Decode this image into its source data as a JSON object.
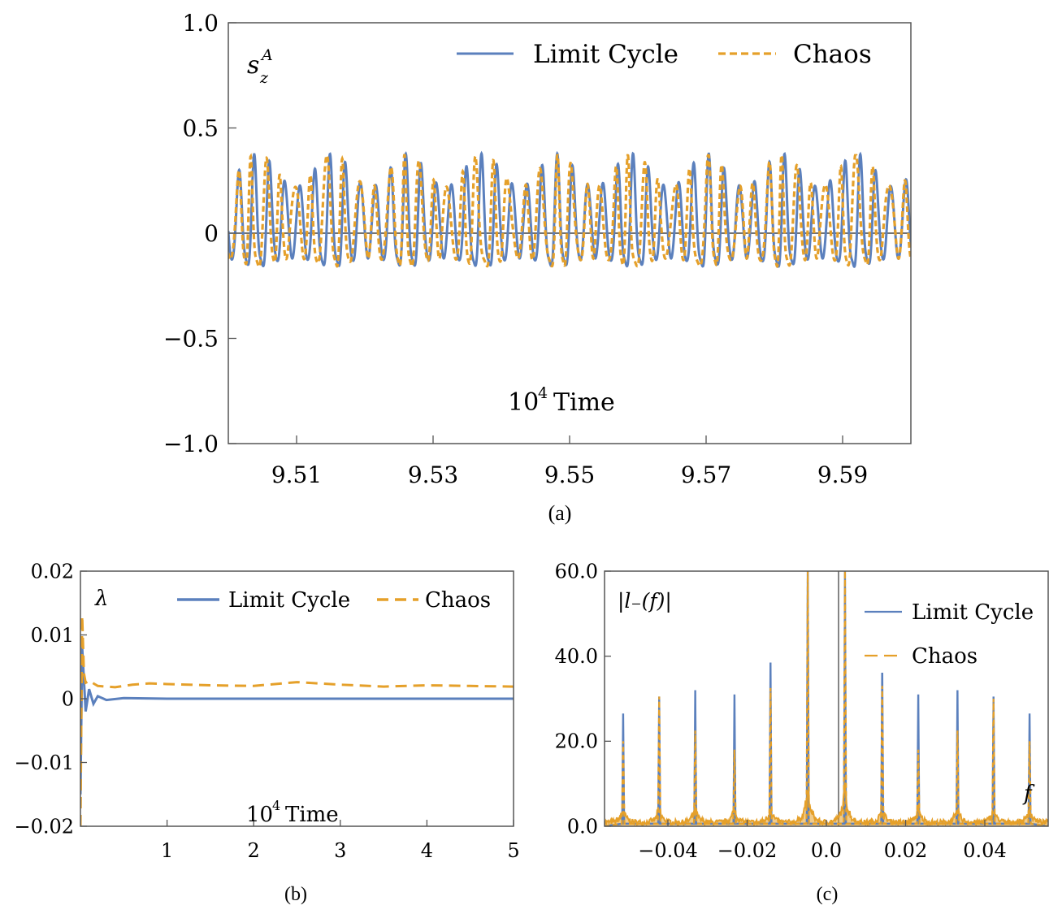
{
  "colors": {
    "limit_cycle": "#5b80bd",
    "chaos": "#e5a02a",
    "axis": "#555555",
    "zero_line": "#444444"
  },
  "chart_data": [
    {
      "id": "a",
      "type": "line",
      "panel_label": "(a)",
      "corner_label": "s_z^A",
      "corner_label_base": "s",
      "corner_label_sub": "z",
      "corner_label_sup": "A",
      "inner_xlabel_base": "10",
      "inner_xlabel_exp": "4",
      "inner_xlabel_rest": "Time",
      "xlim": [
        9.5,
        9.6
      ],
      "ylim": [
        -1.0,
        1.0
      ],
      "xticks": [
        9.51,
        9.53,
        9.55,
        9.57,
        9.59
      ],
      "xtick_labels": [
        "9.51",
        "9.53",
        "9.55",
        "9.57",
        "9.59"
      ],
      "yticks": [
        -1.0,
        -0.5,
        0,
        0.5,
        1.0
      ],
      "ytick_labels": [
        "−1.0",
        "−0.5",
        "0",
        "0.5",
        "1.0"
      ],
      "legend_position": "top-right",
      "grid": false,
      "series": [
        {
          "name": "Limit Cycle",
          "style": "solid",
          "color": "#5b80bd",
          "description": "quasi-periodic oscillation between about -0.28 and 0.38, fast period ~0.0022, envelope period ~0.011",
          "max": 0.38,
          "min": -0.28
        },
        {
          "name": "Chaos",
          "style": "dashed",
          "color": "#e5a02a",
          "description": "similar oscillation with slowly drifting phase, range about -0.30 to 0.37",
          "max": 0.37,
          "min": -0.3
        }
      ]
    },
    {
      "id": "b",
      "type": "line",
      "panel_label": "(b)",
      "corner_label": "λ",
      "inner_xlabel_base": "10",
      "inner_xlabel_exp": "4",
      "inner_xlabel_rest": "Time",
      "xlim": [
        0,
        5
      ],
      "ylim": [
        -0.02,
        0.02
      ],
      "xticks": [
        1,
        2,
        3,
        4,
        5
      ],
      "xtick_labels": [
        "1",
        "2",
        "3",
        "4",
        "5"
      ],
      "yticks": [
        -0.02,
        -0.01,
        0,
        0.01,
        0.02
      ],
      "ytick_labels": [
        "−0.02",
        "−0.01",
        "0",
        "0.01",
        "0.02"
      ],
      "legend_position": "top-right",
      "grid": false,
      "series": [
        {
          "name": "Limit Cycle",
          "style": "solid",
          "color": "#5b80bd",
          "x": [
            0.0,
            0.02,
            0.04,
            0.06,
            0.1,
            0.15,
            0.2,
            0.3,
            0.5,
            1,
            2,
            3,
            4,
            5
          ],
          "y": [
            -0.015,
            0.008,
            0.003,
            -0.002,
            0.0015,
            -0.0008,
            0.0004,
            -0.0002,
            0.0001,
            0,
            0,
            0,
            0,
            0
          ]
        },
        {
          "name": "Chaos",
          "style": "dashed",
          "color": "#e5a02a",
          "x": [
            0.0,
            0.02,
            0.04,
            0.06,
            0.1,
            0.2,
            0.4,
            0.6,
            0.8,
            1.0,
            1.5,
            2.0,
            2.5,
            3.0,
            3.5,
            4.0,
            4.5,
            5.0
          ],
          "y": [
            -0.02,
            0.013,
            0.004,
            0.0025,
            0.0028,
            0.002,
            0.0018,
            0.0022,
            0.0024,
            0.0023,
            0.0021,
            0.002,
            0.0026,
            0.0022,
            0.0019,
            0.0021,
            0.002,
            0.0019
          ]
        }
      ]
    },
    {
      "id": "c",
      "type": "line",
      "panel_label": "(c)",
      "corner_label": "|l₋(f)|",
      "inner_xlabel": "f",
      "xlim": [
        -0.056,
        0.056
      ],
      "ylim": [
        0,
        60
      ],
      "xticks": [
        -0.04,
        -0.02,
        0.0,
        0.02,
        0.04
      ],
      "xtick_labels": [
        "−0.04",
        "−0.02",
        "0.0",
        "0.02",
        "0.04"
      ],
      "yticks": [
        0,
        20,
        40,
        60
      ],
      "ytick_labels": [
        "0.0",
        "20.0",
        "40.0",
        "60.0"
      ],
      "legend_position": "top-right",
      "grid": false,
      "series": [
        {
          "name": "Limit Cycle",
          "style": "solid",
          "color": "#5b80bd",
          "peaks_f": [
            -0.0513,
            -0.0422,
            -0.0331,
            -0.0232,
            -0.0141,
            -0.0047,
            0.0047,
            0.0141,
            0.0232,
            0.0331,
            0.0422,
            0.0513
          ],
          "peaks_y": [
            26.5,
            30.5,
            32,
            31,
            38.5,
            60,
            60,
            38.5,
            31,
            32,
            30.5,
            26.5
          ]
        },
        {
          "name": "Chaos",
          "style": "dashed",
          "color": "#e5a02a",
          "peaks_f": [
            -0.0513,
            -0.0422,
            -0.0331,
            -0.0232,
            -0.0141,
            -0.0047,
            0.0047,
            0.0141,
            0.0232,
            0.0331,
            0.0422,
            0.0513
          ],
          "peaks_y": [
            20,
            30.5,
            22.5,
            18,
            32.5,
            60,
            60,
            33,
            18,
            22.5,
            30,
            20
          ],
          "noise_floor": 1.0
        }
      ]
    }
  ]
}
